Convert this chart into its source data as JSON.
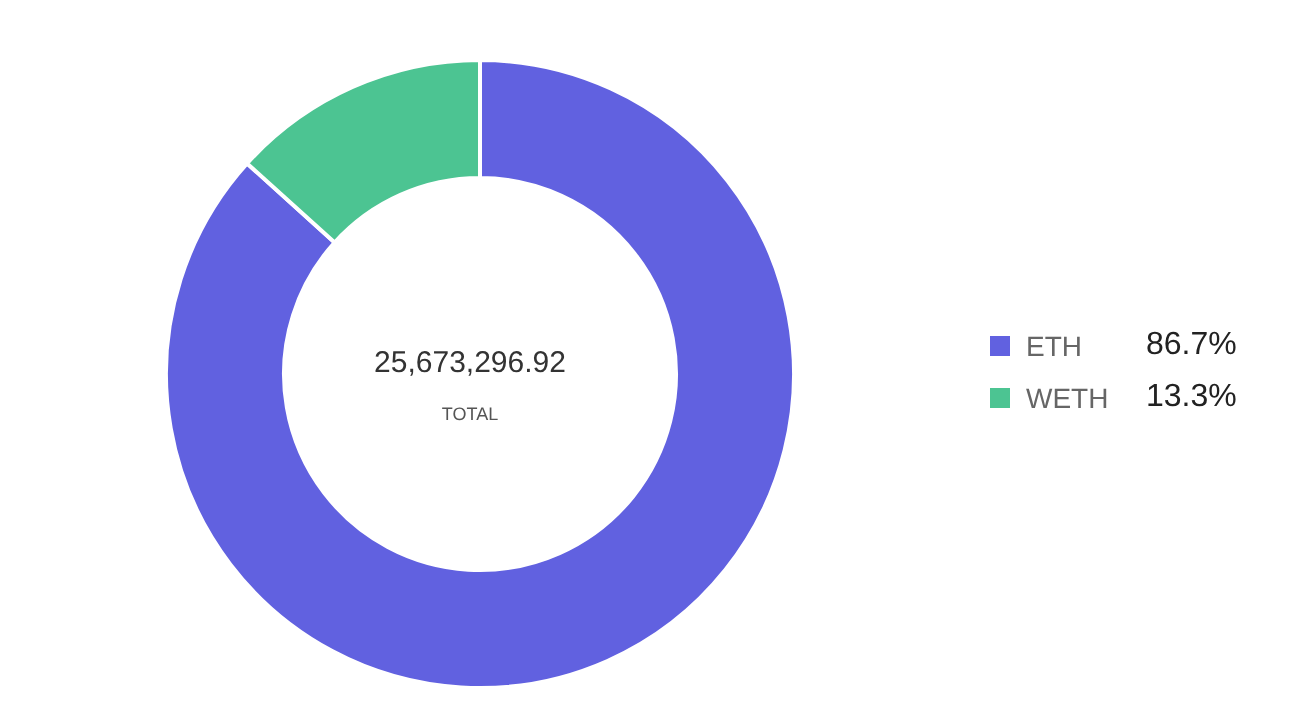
{
  "chart_data": {
    "type": "donut",
    "categories": [
      "ETH",
      "WETH"
    ],
    "values": [
      86.7,
      13.3
    ],
    "colors": [
      "#6161e0",
      "#4cc492"
    ],
    "value_labels": [
      "86.7%",
      "13.3%"
    ],
    "annotations": [
      "25,673,296.92",
      "TOTAL"
    ],
    "legend": "right"
  }
}
